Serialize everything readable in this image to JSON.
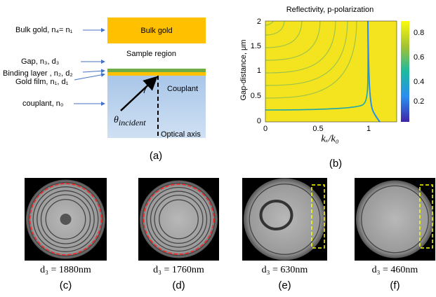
{
  "panel_a": {
    "bulk_gold_label": "Bulk gold, n₄= n₁",
    "bulk_gold": "Bulk gold",
    "gap": "Gap, n₃, d₃",
    "sample_region": "Sample region",
    "binding_layer": "Binding layer , n₂, d₂",
    "gold_film": "Gold film, n₁, d₁",
    "couplant": "Couplant",
    "couplant_label": "couplant, n₀",
    "theta": "θ",
    "theta_sub": "incident",
    "optical_axis": "Optical axis",
    "caption": "(a)"
  },
  "panel_b": {
    "title": "Reflectivity,   p-polarization",
    "ylabel": "Gap-distance, μm",
    "xlabel": "kₓ/k₀",
    "xticks": [
      "0",
      "0.5",
      "1"
    ],
    "yticks": [
      "0",
      "0.5",
      "1",
      "1.5",
      "2"
    ],
    "colorbar_ticks": [
      "0.2",
      "0.4",
      "0.6",
      "0.8"
    ],
    "caption": "(b)"
  },
  "images": [
    {
      "label": "d₃ = 1880nm",
      "caption": "(c)"
    },
    {
      "label": "d₃ = 1760nm",
      "caption": "(d)"
    },
    {
      "label": "d₃ = 630nm",
      "caption": "(e)"
    },
    {
      "label": "d₃ = 460nm",
      "caption": "(f)"
    }
  ]
}
